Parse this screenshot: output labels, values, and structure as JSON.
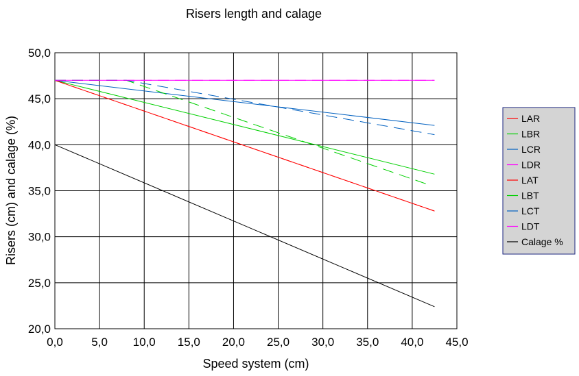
{
  "chart_data": {
    "type": "line",
    "title": "Risers length and calage",
    "xlabel": "Speed system (cm)",
    "ylabel": "Risers (cm) and calage (%)",
    "xlim": [
      0,
      45
    ],
    "ylim": [
      20,
      50
    ],
    "x_ticks": [
      "0,0",
      "5,0",
      "10,0",
      "15,0",
      "20,0",
      "25,0",
      "30,0",
      "35,0",
      "40,0",
      "45,0"
    ],
    "y_ticks": [
      "20,0",
      "25,0",
      "30,0",
      "35,0",
      "40,0",
      "45,0",
      "50,0"
    ],
    "grid": true,
    "legend": "right",
    "series": [
      {
        "name": "LAR",
        "color": "#ff0000",
        "dash": false,
        "x": [
          0,
          42.5
        ],
        "y": [
          47,
          32.8
        ]
      },
      {
        "name": "LBR",
        "color": "#00d000",
        "dash": false,
        "x": [
          0,
          42.5
        ],
        "y": [
          47,
          36.8
        ]
      },
      {
        "name": "LCR",
        "color": "#0060c0",
        "dash": false,
        "x": [
          0,
          42.5
        ],
        "y": [
          47,
          42.1
        ]
      },
      {
        "name": "LDR",
        "color": "#ff00ff",
        "dash": false,
        "x": [
          0,
          42.5
        ],
        "y": [
          47,
          47
        ]
      },
      {
        "name": "LAT",
        "color": "#ff0000",
        "dash": true,
        "x": [
          0,
          42.5
        ],
        "y": [
          47,
          32.8
        ]
      },
      {
        "name": "LBT",
        "color": "#00d000",
        "dash": true,
        "x": [
          0,
          8,
          42
        ],
        "y": [
          47,
          47,
          35.6
        ]
      },
      {
        "name": "LCT",
        "color": "#0060c0",
        "dash": true,
        "x": [
          0,
          8,
          42.5
        ],
        "y": [
          47,
          47,
          41.1
        ]
      },
      {
        "name": "LDT",
        "color": "#ff00ff",
        "dash": true,
        "x": [
          0,
          42.5
        ],
        "y": [
          47,
          47
        ]
      },
      {
        "name": "Calage %",
        "color": "#000000",
        "dash": false,
        "x": [
          0,
          42.5
        ],
        "y": [
          40,
          22.4
        ]
      }
    ]
  }
}
